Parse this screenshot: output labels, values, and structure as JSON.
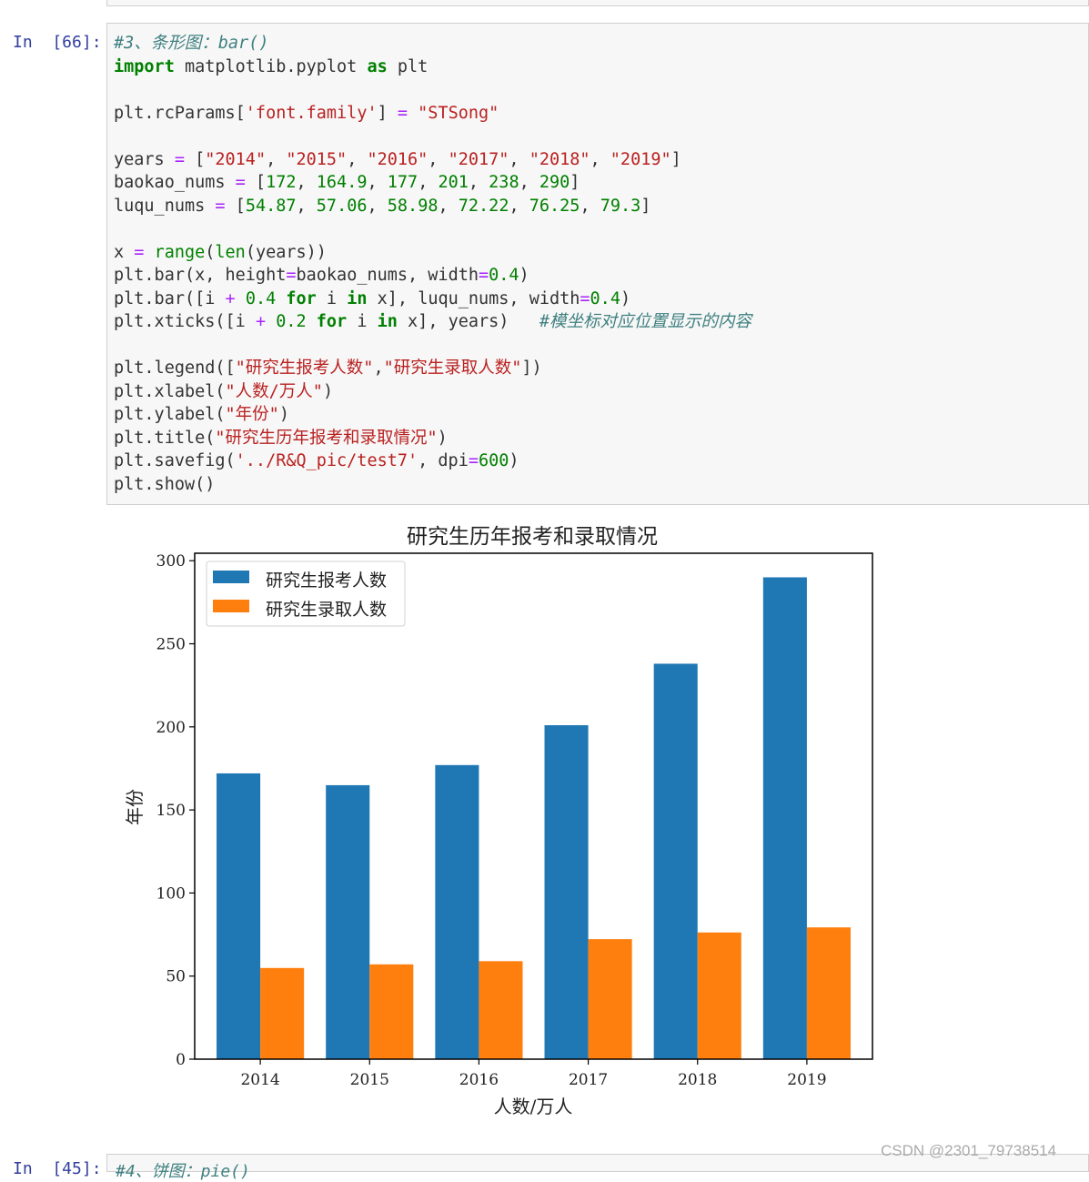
{
  "cell": {
    "prompt": "In  [66]:",
    "code": [
      "#3、条形图：bar()",
      "import matplotlib.pyplot as plt",
      "",
      "plt.rcParams['font.family'] = \"STSong\"",
      "",
      "years = [\"2014\", \"2015\", \"2016\", \"2017\", \"2018\", \"2019\"]",
      "baokao_nums = [172, 164.9, 177, 201, 238, 290]",
      "luqu_nums = [54.87, 57.06, 58.98, 72.22, 76.25, 79.3]",
      "",
      "x = range(len(years))",
      "plt.bar(x, height=baokao_nums, width=0.4)",
      "plt.bar([i + 0.4 for i in x], luqu_nums, width=0.4)",
      "plt.xticks([i + 0.2 for i in x], years)   #模坐标对应位置显示的内容",
      "",
      "plt.legend([\"研究生报考人数\",\"研究生录取人数\"])",
      "plt.xlabel(\"人数/万人\")",
      "plt.ylabel(\"年份\")",
      "plt.title(\"研究生历年报考和录取情况\")",
      "plt.savefig('../R&Q_pic/test7', dpi=600)",
      "plt.show()"
    ]
  },
  "next_cell": {
    "prompt": "In  [45]:",
    "code": "#4、饼图：pie()"
  },
  "watermark": "CSDN @2301_79738514",
  "colors": {
    "series1": "#1f77b4",
    "series2": "#ff7f0e"
  },
  "chart_data": {
    "type": "bar",
    "title": "研究生历年报考和录取情况",
    "xlabel": "人数/万人",
    "ylabel": "年份",
    "categories": [
      "2014",
      "2015",
      "2016",
      "2017",
      "2018",
      "2019"
    ],
    "series": [
      {
        "name": "研究生报考人数",
        "values": [
          172,
          164.9,
          177,
          201,
          238,
          290
        ],
        "color": "#1f77b4"
      },
      {
        "name": "研究生录取人数",
        "values": [
          54.87,
          57.06,
          58.98,
          72.22,
          76.25,
          79.3
        ],
        "color": "#ff7f0e"
      }
    ],
    "yticks": [
      0,
      50,
      100,
      150,
      200,
      250,
      300
    ],
    "ylim": [
      0,
      304.5
    ],
    "legend_position": "upper-left",
    "grid": false
  }
}
